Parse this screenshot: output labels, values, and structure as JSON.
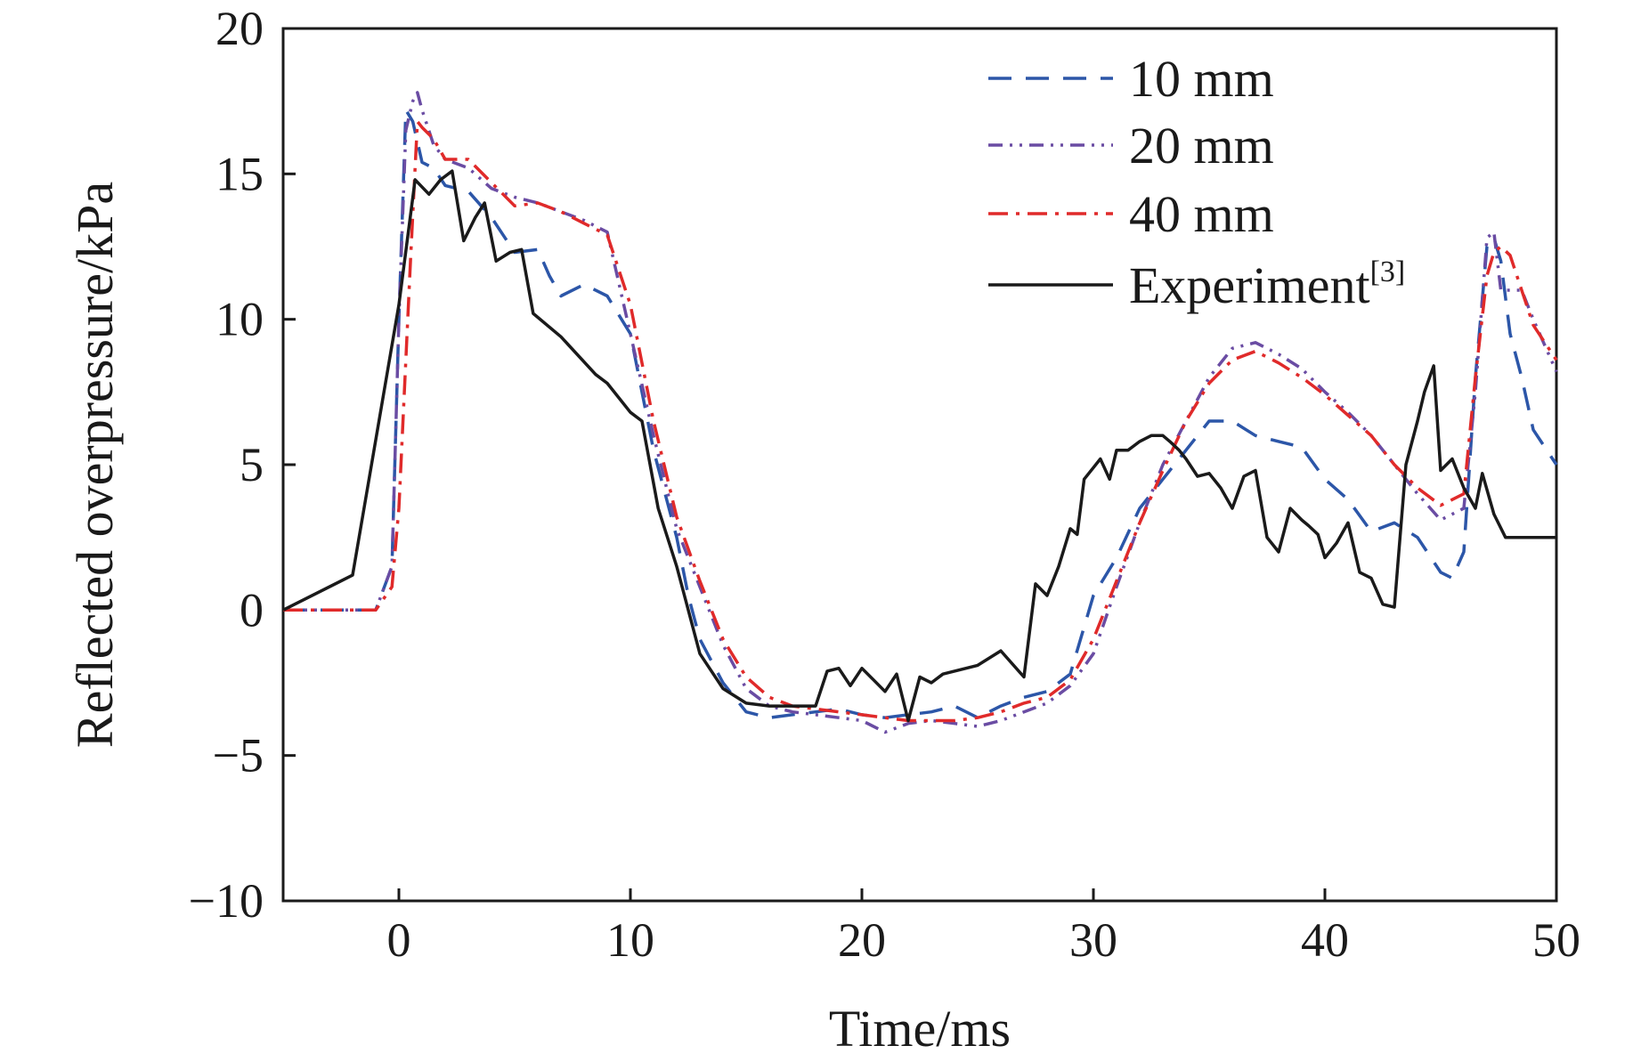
{
  "chart_data": {
    "type": "line",
    "title": "",
    "xlabel": "Time/ms",
    "ylabel": "Reflected overpressure/kPa",
    "xlim": [
      -5,
      50
    ],
    "ylim": [
      -10,
      20
    ],
    "xticks": [
      0,
      10,
      20,
      30,
      40,
      50
    ],
    "yticks": [
      -10,
      -5,
      0,
      5,
      10,
      15,
      20
    ],
    "xtick_labels": [
      "0",
      "10",
      "20",
      "30",
      "40",
      "50"
    ],
    "ytick_labels": [
      "−10",
      "−5",
      "0",
      "5",
      "10",
      "15",
      "20"
    ],
    "grid": false,
    "legend_position": "top-right",
    "series": [
      {
        "name": "10 mm",
        "color": "#2c56a8",
        "style": "dashed",
        "x": [
          -5,
          -1,
          -0.3,
          0,
          0.3,
          0.6,
          1,
          1.5,
          2,
          3,
          4,
          5,
          6,
          6.5,
          7,
          8,
          9,
          10,
          11,
          12,
          12.5,
          13,
          14,
          15,
          16,
          17,
          18,
          19,
          20,
          21,
          22,
          23,
          24,
          25,
          26,
          27,
          28,
          29,
          30,
          31,
          32,
          33,
          34,
          35,
          36,
          37,
          38,
          39,
          40,
          41,
          42,
          43,
          44,
          45,
          45.5,
          46,
          46.5,
          47,
          47.3,
          47.6,
          48,
          48.5,
          49,
          50
        ],
        "values": [
          0,
          0,
          1.5,
          10,
          17.2,
          16.8,
          15.4,
          15.2,
          14.6,
          14.4,
          13.5,
          12.3,
          12.4,
          11.5,
          10.8,
          11.2,
          10.8,
          9.5,
          5.5,
          2.5,
          0.5,
          -1,
          -2.5,
          -3.5,
          -3.7,
          -3.6,
          -3.5,
          -3.4,
          -3.6,
          -3.7,
          -3.6,
          -3.5,
          -3.3,
          -3.7,
          -3.3,
          -3.0,
          -2.8,
          -2.2,
          0.5,
          1.8,
          3.5,
          4.5,
          5.5,
          6.5,
          6.5,
          6,
          5.8,
          5.6,
          4.5,
          3.8,
          2.7,
          3.0,
          2.5,
          1.3,
          1.1,
          2.0,
          8.0,
          12.5,
          12.8,
          12.0,
          9.5,
          8.0,
          6.2,
          5.0
        ]
      },
      {
        "name": "20 mm",
        "color": "#6a4ca3",
        "style": "dash-dot-dot",
        "x": [
          -5,
          -1,
          -0.3,
          0,
          0.3,
          0.6,
          0.8,
          1,
          1.5,
          2,
          3,
          4,
          5,
          6,
          7,
          8,
          9,
          10,
          11,
          12,
          13,
          14,
          15,
          16,
          17,
          18,
          19,
          20,
          21,
          22,
          23,
          24,
          25,
          26,
          27,
          28,
          29,
          30,
          31,
          32,
          33,
          34,
          35,
          36,
          37,
          38,
          39,
          40,
          41,
          42,
          43,
          44,
          45,
          46,
          46.5,
          47,
          47.3,
          47.6,
          48,
          48.5,
          49,
          50
        ],
        "values": [
          0,
          0,
          1.5,
          10,
          16.5,
          17.5,
          17.8,
          17.2,
          16.0,
          15.5,
          15.2,
          14.5,
          14.2,
          14.0,
          13.7,
          13.4,
          13.0,
          9.5,
          6.0,
          2.8,
          0.8,
          -1.2,
          -2.7,
          -3.3,
          -3.5,
          -3.6,
          -3.7,
          -3.8,
          -4.2,
          -3.9,
          -3.8,
          -3.9,
          -4.0,
          -3.8,
          -3.5,
          -3.2,
          -2.6,
          -1.5,
          0.8,
          3.0,
          5.0,
          6.5,
          8.0,
          9.0,
          9.2,
          8.8,
          8.3,
          7.5,
          6.8,
          6.0,
          5.0,
          4.0,
          3.1,
          3.5,
          7.5,
          12.8,
          13.0,
          11.0,
          11.0,
          11.0,
          10.0,
          8.2
        ]
      },
      {
        "name": "40 mm",
        "color": "#e02a2a",
        "style": "dash-dot",
        "x": [
          -5,
          -1,
          -0.3,
          0,
          0.5,
          0.8,
          1,
          1.5,
          2,
          3,
          4,
          5,
          6,
          7,
          8,
          9,
          10,
          11,
          12,
          13,
          14,
          15,
          16,
          17,
          18,
          19,
          20,
          21,
          22,
          23,
          24,
          25,
          26,
          27,
          28,
          29,
          30,
          31,
          32,
          33,
          34,
          35,
          36,
          37,
          38,
          39,
          40,
          41,
          42,
          43,
          44,
          45,
          46,
          46.5,
          47,
          47.3,
          47.6,
          48,
          48.5,
          49,
          50
        ],
        "values": [
          0,
          0,
          0.8,
          3.5,
          12.0,
          16.8,
          16.6,
          16.2,
          15.5,
          15.5,
          14.7,
          13.9,
          14.0,
          13.7,
          13.3,
          12.9,
          10.5,
          6.5,
          3.2,
          1.0,
          -1.0,
          -2.3,
          -3.0,
          -3.3,
          -3.4,
          -3.5,
          -3.6,
          -3.7,
          -3.8,
          -3.8,
          -3.8,
          -3.7,
          -3.5,
          -3.2,
          -3.0,
          -2.4,
          -1.0,
          1.0,
          3.0,
          4.8,
          6.5,
          7.8,
          8.6,
          8.9,
          8.5,
          8.0,
          7.4,
          6.7,
          6.0,
          5.0,
          4.2,
          3.6,
          4.0,
          8.0,
          11.5,
          12.3,
          12.5,
          12.2,
          11.0,
          9.8,
          8.6
        ]
      },
      {
        "name": "Experiment",
        "legend_superscript": "[3]",
        "color": "#1a1a1a",
        "style": "solid",
        "x": [
          -5,
          -2,
          0,
          0.7,
          1.3,
          1.8,
          2.3,
          2.8,
          3.3,
          3.7,
          4.2,
          4.8,
          5.3,
          5.8,
          7,
          8.5,
          9,
          10,
          10.5,
          11.2,
          12,
          13,
          14,
          15,
          16,
          17,
          18,
          18.5,
          19,
          19.5,
          20,
          20.5,
          21,
          21.5,
          22,
          22.5,
          23,
          23.5,
          24,
          25,
          26,
          27,
          27.5,
          28,
          28.5,
          29,
          29.3,
          29.6,
          30,
          30.3,
          30.7,
          31,
          31.5,
          32,
          32.5,
          33,
          33.3,
          33.7,
          34,
          34.5,
          35,
          35.5,
          36,
          36.5,
          37,
          37.5,
          38,
          38.5,
          39,
          39.3,
          39.7,
          40,
          40.5,
          41,
          41.5,
          42,
          42.5,
          43,
          43.5,
          44,
          44.3,
          44.7,
          45,
          45.5,
          46,
          46.5,
          46.8,
          47.3,
          47.8,
          48.3,
          48.7,
          49.2,
          49.6,
          50
        ],
        "values": [
          0,
          1.2,
          10.5,
          14.8,
          14.3,
          14.8,
          15.1,
          12.7,
          13.5,
          14.0,
          12.0,
          12.3,
          12.4,
          10.2,
          9.4,
          8.1,
          7.8,
          6.8,
          6.5,
          3.5,
          1.5,
          -1.5,
          -2.7,
          -3.2,
          -3.3,
          -3.3,
          -3.3,
          -2.1,
          -2.0,
          -2.6,
          -2.0,
          -2.4,
          -2.8,
          -2.2,
          -3.8,
          -2.3,
          -2.5,
          -2.2,
          -2.1,
          -1.9,
          -1.4,
          -2.3,
          0.9,
          0.5,
          1.5,
          2.8,
          2.6,
          4.5,
          4.9,
          5.2,
          4.5,
          5.5,
          5.5,
          5.8,
          6.0,
          6.0,
          5.8,
          5.5,
          5.2,
          4.6,
          4.7,
          4.2,
          3.5,
          4.6,
          4.8,
          2.5,
          2.0,
          3.5,
          3.1,
          2.9,
          2.6,
          1.8,
          2.3,
          3.0,
          1.3,
          1.1,
          0.2,
          0.1,
          5.0,
          6.5,
          7.5,
          8.4,
          4.8,
          5.2,
          4.2,
          3.5,
          4.7,
          3.3,
          2.5,
          2.5,
          2.5,
          2.5,
          2.5,
          2.5
        ]
      }
    ]
  }
}
